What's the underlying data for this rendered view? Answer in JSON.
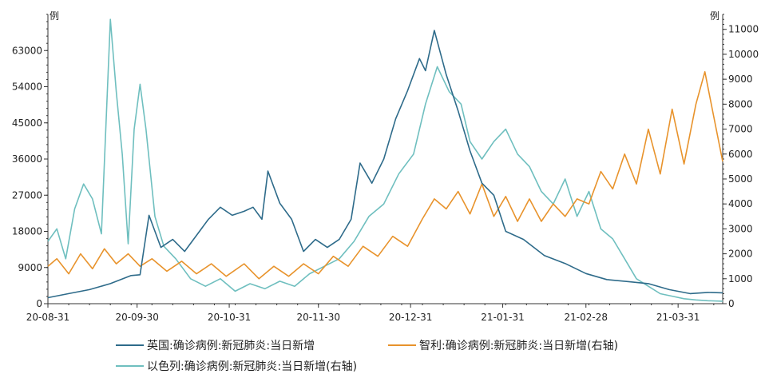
{
  "chart_data": {
    "type": "line",
    "left_axis": {
      "unit": "例",
      "ylim": [
        0,
        72000
      ],
      "ticks": [
        0,
        9000,
        18000,
        27000,
        36000,
        45000,
        54000,
        63000
      ]
    },
    "right_axis": {
      "unit": "例",
      "ylim": [
        0,
        11600
      ],
      "ticks": [
        0,
        1000,
        2000,
        3000,
        4000,
        5000,
        6000,
        7000,
        8000,
        9000,
        10000,
        11000
      ]
    },
    "x_axis": {
      "start": "2020-08-31",
      "end": "2021-04-15",
      "tick_dates": [
        "2020-08-31",
        "2020-09-30",
        "2020-10-31",
        "2020-11-30",
        "2020-12-31",
        "2021-01-31",
        "2021-02-28",
        "2021-03-31"
      ],
      "tick_labels": [
        "20-08-31",
        "20-09-30",
        "20-10-31",
        "20-11-30",
        "20-12-31",
        "21-01-31",
        "21-02-28",
        "21-03-31"
      ]
    },
    "legend_position": "bottom",
    "series": [
      {
        "name": "英国:确诊病例:新冠肺炎:当日新增",
        "axis": "left",
        "color": "#2e6b8a",
        "points": [
          [
            "2020-08-31",
            1500
          ],
          [
            "2020-09-07",
            2500
          ],
          [
            "2020-09-14",
            3500
          ],
          [
            "2020-09-21",
            5000
          ],
          [
            "2020-09-28",
            7000
          ],
          [
            "2020-10-01",
            7200
          ],
          [
            "2020-10-04",
            22000
          ],
          [
            "2020-10-08",
            14000
          ],
          [
            "2020-10-12",
            16000
          ],
          [
            "2020-10-16",
            13000
          ],
          [
            "2020-10-20",
            17000
          ],
          [
            "2020-10-24",
            21000
          ],
          [
            "2020-10-28",
            24000
          ],
          [
            "2020-11-01",
            22000
          ],
          [
            "2020-11-05",
            23000
          ],
          [
            "2020-11-08",
            24000
          ],
          [
            "2020-11-11",
            21000
          ],
          [
            "2020-11-13",
            33000
          ],
          [
            "2020-11-17",
            25000
          ],
          [
            "2020-11-21",
            21000
          ],
          [
            "2020-11-25",
            13000
          ],
          [
            "2020-11-29",
            16000
          ],
          [
            "2020-12-03",
            14000
          ],
          [
            "2020-12-07",
            16000
          ],
          [
            "2020-12-11",
            21000
          ],
          [
            "2020-12-14",
            35000
          ],
          [
            "2020-12-18",
            30000
          ],
          [
            "2020-12-22",
            36000
          ],
          [
            "2020-12-26",
            46000
          ],
          [
            "2020-12-30",
            53000
          ],
          [
            "2021-01-03",
            61000
          ],
          [
            "2021-01-05",
            58000
          ],
          [
            "2021-01-08",
            68000
          ],
          [
            "2021-01-12",
            57000
          ],
          [
            "2021-01-16",
            48000
          ],
          [
            "2021-01-20",
            38000
          ],
          [
            "2021-01-24",
            30000
          ],
          [
            "2021-01-28",
            27000
          ],
          [
            "2021-02-01",
            18000
          ],
          [
            "2021-02-07",
            16000
          ],
          [
            "2021-02-14",
            12000
          ],
          [
            "2021-02-21",
            10000
          ],
          [
            "2021-02-28",
            7500
          ],
          [
            "2021-03-07",
            6000
          ],
          [
            "2021-03-14",
            5500
          ],
          [
            "2021-03-21",
            5000
          ],
          [
            "2021-03-28",
            3500
          ],
          [
            "2021-04-04",
            2500
          ],
          [
            "2021-04-10",
            2800
          ],
          [
            "2021-04-15",
            2700
          ]
        ]
      },
      {
        "name": "智利:确诊病例:新冠肺炎:当日新增(右轴)",
        "axis": "right",
        "color": "#e8932c",
        "points": [
          [
            "2020-08-31",
            1500
          ],
          [
            "2020-09-03",
            1800
          ],
          [
            "2020-09-07",
            1200
          ],
          [
            "2020-09-11",
            2000
          ],
          [
            "2020-09-15",
            1400
          ],
          [
            "2020-09-19",
            2200
          ],
          [
            "2020-09-23",
            1600
          ],
          [
            "2020-09-27",
            2000
          ],
          [
            "2020-10-01",
            1500
          ],
          [
            "2020-10-05",
            1800
          ],
          [
            "2020-10-10",
            1300
          ],
          [
            "2020-10-15",
            1700
          ],
          [
            "2020-10-20",
            1200
          ],
          [
            "2020-10-25",
            1600
          ],
          [
            "2020-10-30",
            1100
          ],
          [
            "2020-11-05",
            1600
          ],
          [
            "2020-11-10",
            1000
          ],
          [
            "2020-11-15",
            1500
          ],
          [
            "2020-11-20",
            1100
          ],
          [
            "2020-11-25",
            1600
          ],
          [
            "2020-11-30",
            1200
          ],
          [
            "2020-12-05",
            1900
          ],
          [
            "2020-12-10",
            1500
          ],
          [
            "2020-12-15",
            2300
          ],
          [
            "2020-12-20",
            1900
          ],
          [
            "2020-12-25",
            2700
          ],
          [
            "2020-12-30",
            2300
          ],
          [
            "2021-01-04",
            3400
          ],
          [
            "2021-01-08",
            4200
          ],
          [
            "2021-01-12",
            3800
          ],
          [
            "2021-01-16",
            4500
          ],
          [
            "2021-01-20",
            3600
          ],
          [
            "2021-01-24",
            4800
          ],
          [
            "2021-01-28",
            3500
          ],
          [
            "2021-02-01",
            4300
          ],
          [
            "2021-02-05",
            3300
          ],
          [
            "2021-02-09",
            4200
          ],
          [
            "2021-02-13",
            3300
          ],
          [
            "2021-02-17",
            4000
          ],
          [
            "2021-02-21",
            3500
          ],
          [
            "2021-02-25",
            4200
          ],
          [
            "2021-03-01",
            4000
          ],
          [
            "2021-03-05",
            5300
          ],
          [
            "2021-03-09",
            4600
          ],
          [
            "2021-03-13",
            6000
          ],
          [
            "2021-03-17",
            4800
          ],
          [
            "2021-03-21",
            7000
          ],
          [
            "2021-03-25",
            5200
          ],
          [
            "2021-03-29",
            7800
          ],
          [
            "2021-04-02",
            5600
          ],
          [
            "2021-04-06",
            8000
          ],
          [
            "2021-04-09",
            9300
          ],
          [
            "2021-04-12",
            7500
          ],
          [
            "2021-04-15",
            5700
          ]
        ]
      },
      {
        "name": "以色列:确诊病例:新冠肺炎:当日新增(右轴)",
        "axis": "right",
        "color": "#6fbfbf",
        "points": [
          [
            "2020-08-31",
            2500
          ],
          [
            "2020-09-03",
            3000
          ],
          [
            "2020-09-06",
            1800
          ],
          [
            "2020-09-09",
            3800
          ],
          [
            "2020-09-12",
            4800
          ],
          [
            "2020-09-15",
            4200
          ],
          [
            "2020-09-18",
            2800
          ],
          [
            "2020-09-21",
            11400
          ],
          [
            "2020-09-23",
            8500
          ],
          [
            "2020-09-25",
            6000
          ],
          [
            "2020-09-27",
            2400
          ],
          [
            "2020-09-29",
            7000
          ],
          [
            "2020-10-01",
            8800
          ],
          [
            "2020-10-03",
            7000
          ],
          [
            "2020-10-06",
            3500
          ],
          [
            "2020-10-09",
            2300
          ],
          [
            "2020-10-13",
            1800
          ],
          [
            "2020-10-18",
            1000
          ],
          [
            "2020-10-23",
            700
          ],
          [
            "2020-10-28",
            1000
          ],
          [
            "2020-11-02",
            500
          ],
          [
            "2020-11-07",
            800
          ],
          [
            "2020-11-12",
            600
          ],
          [
            "2020-11-17",
            900
          ],
          [
            "2020-11-22",
            700
          ],
          [
            "2020-11-27",
            1200
          ],
          [
            "2020-12-02",
            1500
          ],
          [
            "2020-12-07",
            1800
          ],
          [
            "2020-12-12",
            2500
          ],
          [
            "2020-12-17",
            3500
          ],
          [
            "2020-12-22",
            4000
          ],
          [
            "2020-12-27",
            5200
          ],
          [
            "2021-01-01",
            6000
          ],
          [
            "2021-01-05",
            8000
          ],
          [
            "2021-01-09",
            9500
          ],
          [
            "2021-01-13",
            8500
          ],
          [
            "2021-01-17",
            8000
          ],
          [
            "2021-01-20",
            6500
          ],
          [
            "2021-01-24",
            5800
          ],
          [
            "2021-01-28",
            6500
          ],
          [
            "2021-02-01",
            7000
          ],
          [
            "2021-02-05",
            6000
          ],
          [
            "2021-02-09",
            5500
          ],
          [
            "2021-02-13",
            4500
          ],
          [
            "2021-02-17",
            4000
          ],
          [
            "2021-02-21",
            5000
          ],
          [
            "2021-02-25",
            3500
          ],
          [
            "2021-03-01",
            4500
          ],
          [
            "2021-03-05",
            3000
          ],
          [
            "2021-03-09",
            2600
          ],
          [
            "2021-03-13",
            1800
          ],
          [
            "2021-03-17",
            1000
          ],
          [
            "2021-03-21",
            700
          ],
          [
            "2021-03-25",
            400
          ],
          [
            "2021-03-29",
            300
          ],
          [
            "2021-04-02",
            200
          ],
          [
            "2021-04-06",
            150
          ],
          [
            "2021-04-10",
            120
          ],
          [
            "2021-04-15",
            100
          ]
        ]
      }
    ]
  }
}
